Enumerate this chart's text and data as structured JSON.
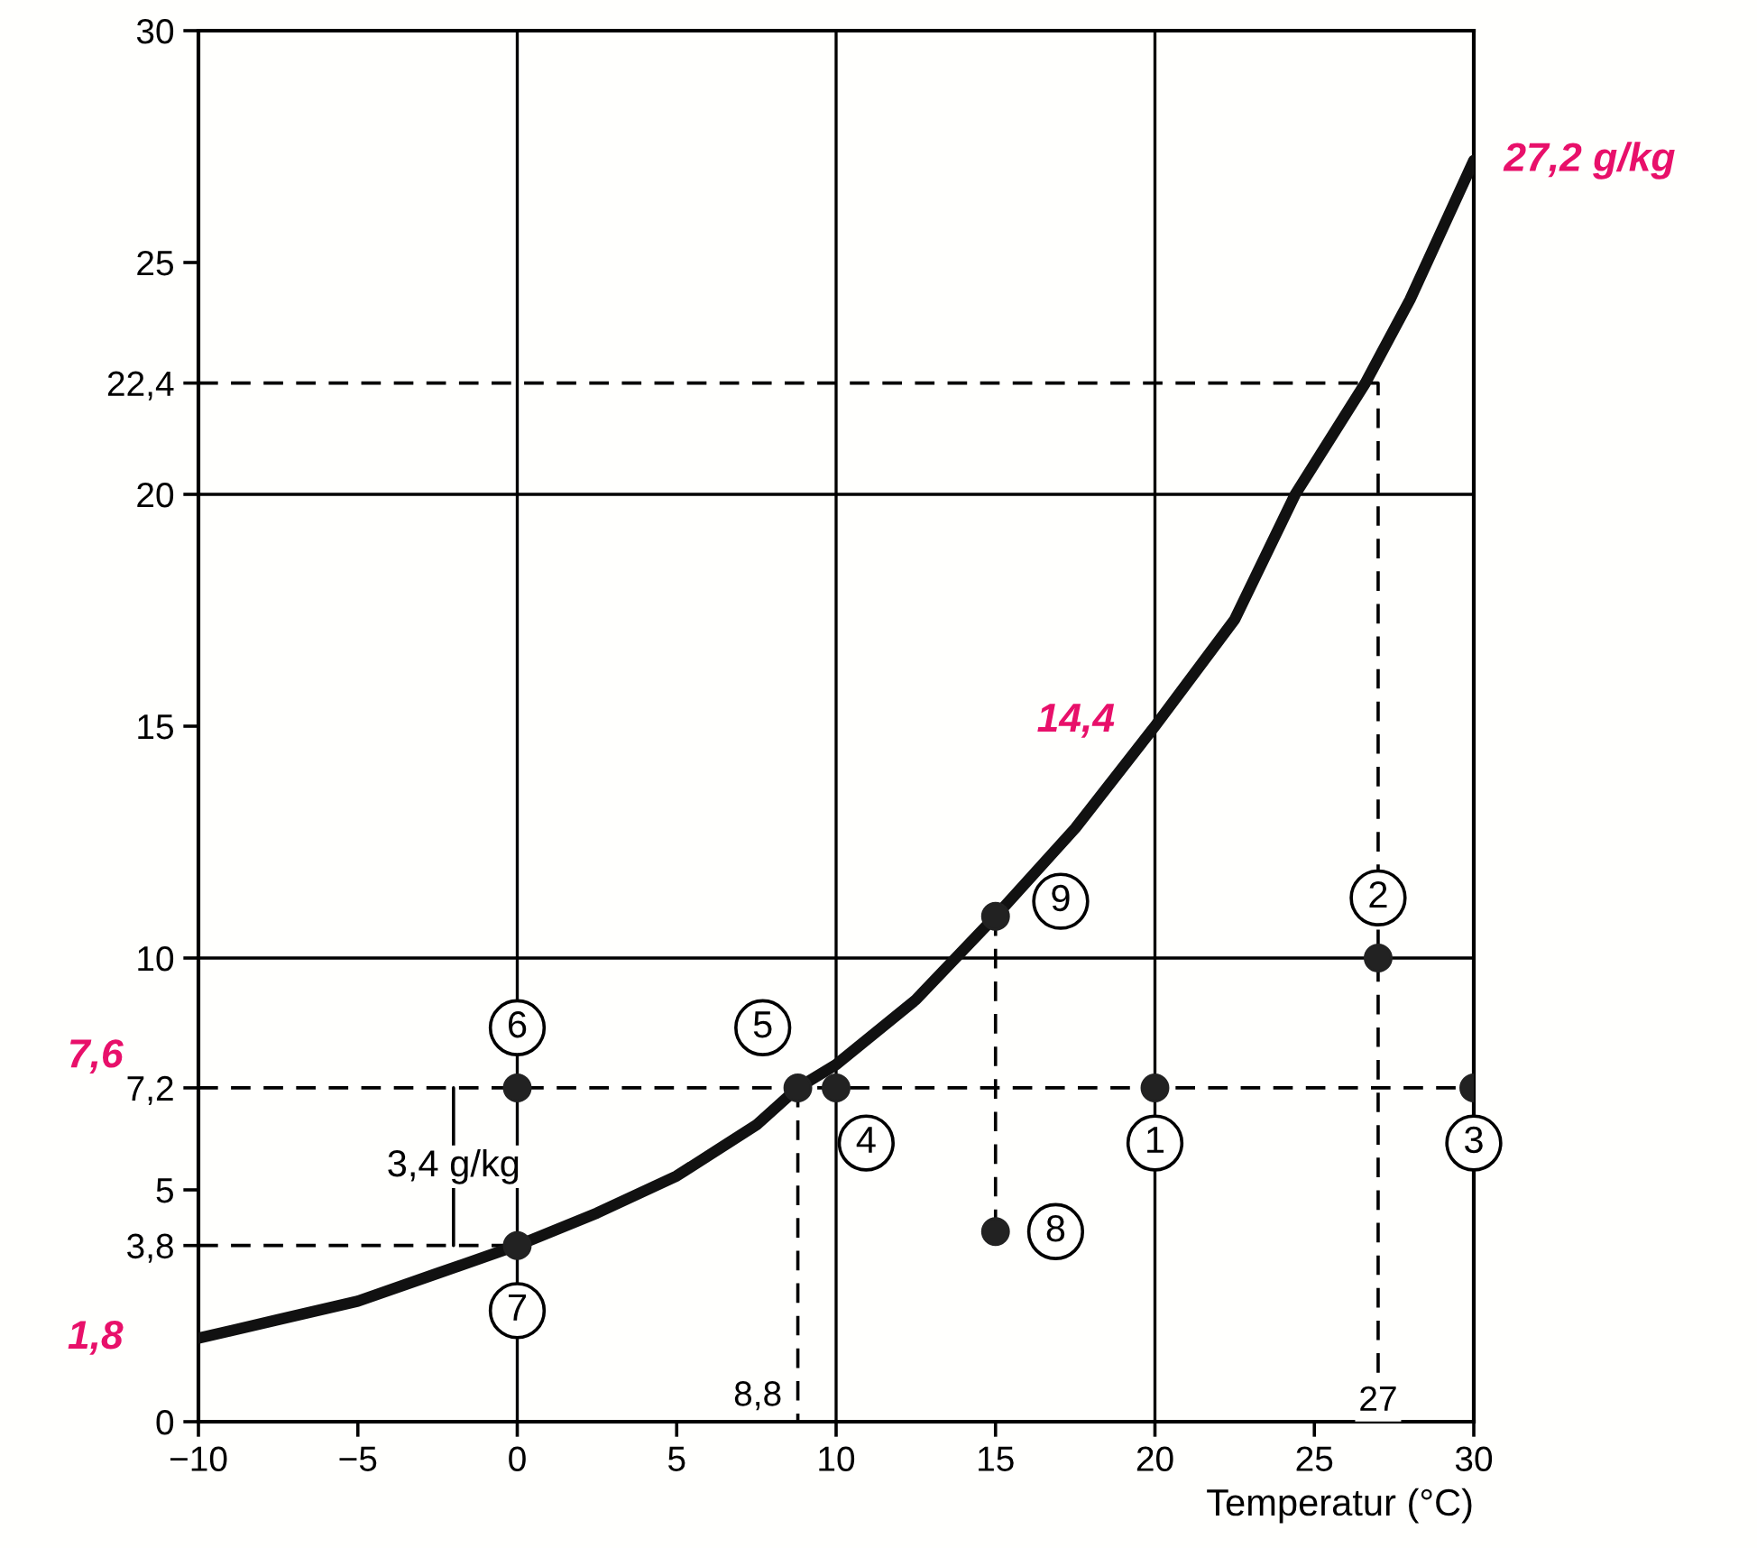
{
  "chart_data": {
    "type": "line",
    "xlabel": "Temperatur (°C)",
    "xlim": [
      -10,
      30
    ],
    "ylim": [
      0,
      30
    ],
    "xticks": [
      {
        "value": -10,
        "label": "−10"
      },
      {
        "value": -5,
        "label": "−5"
      },
      0,
      5,
      10,
      15,
      20,
      25,
      30
    ],
    "yticks": [
      0,
      {
        "value": 3.8,
        "label": "3,8"
      },
      5,
      {
        "value": 7.2,
        "label": "7,2"
      },
      10,
      15,
      20,
      {
        "value": 22.4,
        "label": "22,4"
      },
      25,
      30
    ],
    "grid": false,
    "legend": false,
    "ref_lines": [
      {
        "axis": "x",
        "value": 0,
        "color": "#000000"
      },
      {
        "axis": "x",
        "value": 10,
        "color": "#000000"
      },
      {
        "axis": "x",
        "value": 20,
        "color": "#000000"
      },
      {
        "axis": "y",
        "value": 10,
        "color": "#000000"
      },
      {
        "axis": "y",
        "value": 20,
        "color": "#000000"
      }
    ],
    "series": [
      {
        "color": "#000000",
        "line_style": "dashed",
        "x": [
          -10,
          27,
          27
        ],
        "values": [
          22.4,
          22.4,
          0
        ]
      },
      {
        "color": "#000000",
        "line_style": "dashed",
        "x": [
          -10,
          30
        ],
        "values": [
          7.2,
          7.2
        ]
      },
      {
        "color": "#000000",
        "line_style": "dashed",
        "x": [
          8.8,
          8.8
        ],
        "values": [
          7.2,
          0
        ]
      },
      {
        "color": "#000000",
        "line_style": "dashed",
        "x": [
          15,
          15
        ],
        "values": [
          10.9,
          4.1
        ]
      },
      {
        "color": "#000000",
        "line_style": "dashed",
        "x": [
          -10,
          0
        ],
        "values": [
          3.8,
          3.8
        ]
      },
      {
        "color": "#000000",
        "line_style": "solid",
        "x": [
          -2,
          -2
        ],
        "values": [
          3.8,
          7.2
        ]
      },
      {
        "color": "#111111",
        "line_style": "solid",
        "x": [
          -10,
          -7.5,
          -5,
          -2.5,
          0,
          2.5,
          5,
          7.5,
          8.8,
          10,
          12.5,
          15,
          17.5,
          20,
          22.5,
          24.4,
          26.6,
          28,
          30
        ],
        "values": [
          1.8,
          2.2,
          2.6,
          3.2,
          3.8,
          4.5,
          5.3,
          6.4,
          7.2,
          7.7,
          9.1,
          10.9,
          12.8,
          15.0,
          17.3,
          20,
          22.4,
          24.2,
          27.2
        ]
      },
      {
        "type": "scatter",
        "color": "#222222",
        "marker": "circle",
        "x": [
          20,
          27,
          30,
          10,
          8.8,
          0,
          0,
          15,
          15
        ],
        "values": [
          7.2,
          10,
          7.2,
          7.2,
          7.2,
          7.2,
          3.8,
          4.1,
          10.9
        ]
      }
    ],
    "annotations": [
      {
        "text": "1",
        "x": 20,
        "y": 7.2
      },
      {
        "text": "2",
        "x": 27,
        "y": 10
      },
      {
        "text": "3",
        "x": 30,
        "y": 7.2
      },
      {
        "text": "4",
        "x": 10,
        "y": 7.2
      },
      {
        "text": "5",
        "x": 8.8,
        "y": 7.2
      },
      {
        "text": "6",
        "x": 0,
        "y": 7.2
      },
      {
        "text": "7",
        "x": 0,
        "y": 3.8
      },
      {
        "text": "8",
        "x": 15,
        "y": 4.1
      },
      {
        "text": "9",
        "x": 15,
        "y": 10.9
      },
      {
        "text": "3,4 g/kg",
        "x": -2,
        "y": 5.5
      },
      {
        "text": "8,8",
        "x": 8.8,
        "y": 0
      },
      {
        "text": "27",
        "x": 27,
        "y": 0
      },
      {
        "text": "27,2 g/kg",
        "x": 30,
        "y": 27.2
      },
      {
        "text": "14,4",
        "x": 20,
        "y": 15.0
      },
      "7,6",
      {
        "text": "1,8",
        "x": -10,
        "y": 1.8
      }
    ]
  }
}
